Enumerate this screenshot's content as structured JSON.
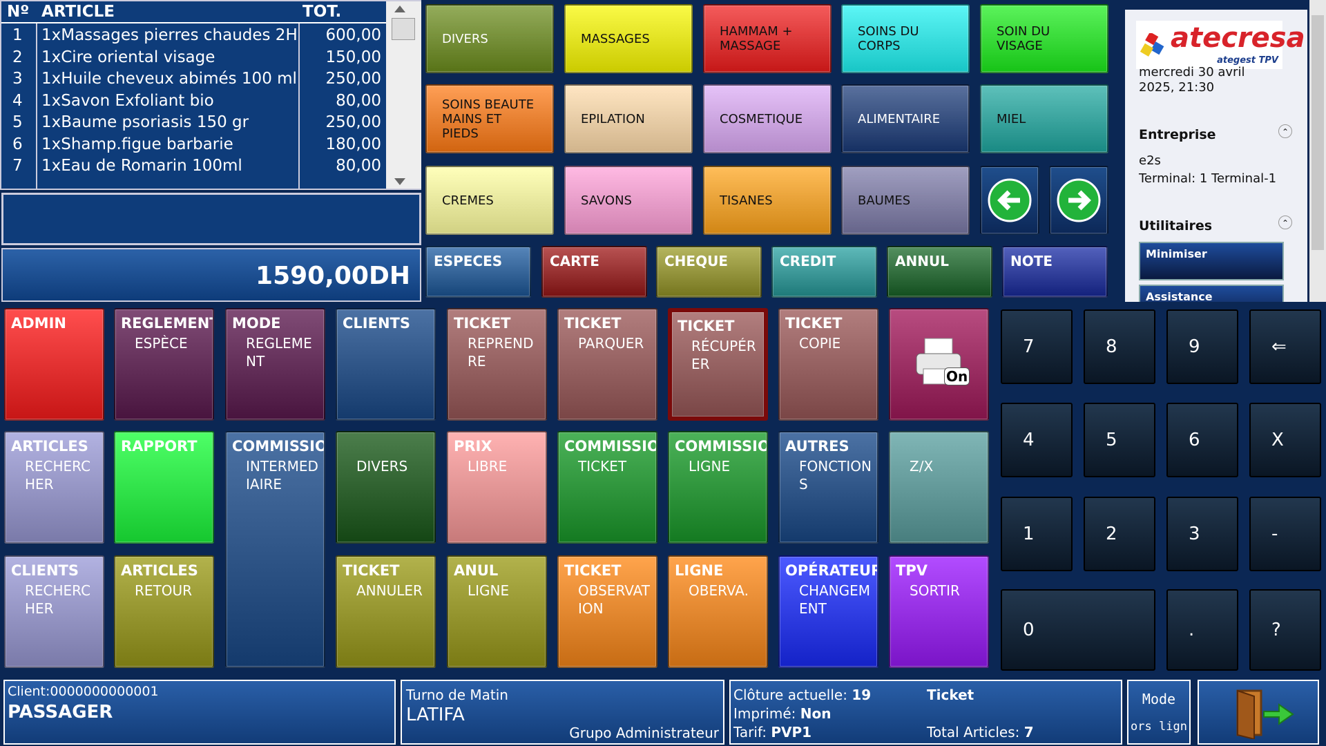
{
  "ticket": {
    "columns": [
      "Nº",
      "ARTICLE",
      "TOT."
    ],
    "rows": [
      [
        "1",
        "1xMassages pierres chaudes 2H",
        "600,00"
      ],
      [
        "2",
        "1xCire oriental visage",
        "150,00"
      ],
      [
        "3",
        "1xHuile cheveux abimés 100 ml",
        "250,00"
      ],
      [
        "4",
        "1xSavon Exfoliant bio",
        "80,00"
      ],
      [
        "5",
        "1xBaume psoriasis 150 gr",
        "250,00"
      ],
      [
        "6",
        "1xShamp.figue barbarie",
        "180,00"
      ],
      [
        "7",
        "1xEau de Romarin 100ml",
        "80,00"
      ]
    ],
    "total": "1590,00DH"
  },
  "families": [
    "DIVERS",
    "MASSAGES",
    "HAMMAM + MASSAGE",
    "SOINS DU CORPS",
    "SOIN DU VISAGE",
    "SOINS BEAUTE MAINS ET PIEDS",
    "EPILATION",
    "COSMETIQUE",
    "ALIMENTAIRE",
    "MIEL",
    "CREMES",
    "SAVONS",
    "TISANES",
    "BAUMES"
  ],
  "payments": [
    "ESPECES",
    "CARTE",
    "CHEQUE",
    "CREDIT",
    "ANNUL",
    "NOTE"
  ],
  "functions": [
    {
      "title": "ADMIN"
    },
    {
      "title": "REGLEMENT",
      "sub": "ESPÈCE"
    },
    {
      "title": "MODE",
      "sub": "REGLEMENT"
    },
    {
      "title": "CLIENTS"
    },
    {
      "title": "TICKET",
      "sub": "REPRENDRE"
    },
    {
      "title": "TICKET",
      "sub": "PARQUER"
    },
    {
      "title": "TICKET",
      "sub": "RÉCUPÉRER"
    },
    {
      "title": "TICKET",
      "sub": "COPIE"
    },
    {
      "icon_label": "On"
    },
    {
      "title": "ARTICLES",
      "sub": "RECHERCHER"
    },
    {
      "title": "RAPPORT"
    },
    {
      "title": "COMMISSIO",
      "sub": "INTERMEDIAIRE"
    },
    {
      "sub": "DIVERS"
    },
    {
      "title": "PRIX",
      "sub": "LIBRE"
    },
    {
      "title": "COMMISSIO",
      "sub": "TICKET"
    },
    {
      "title": "COMMISSIO",
      "sub": "LIGNE"
    },
    {
      "title": "AUTRES",
      "sub": "FONCTIONS"
    },
    {
      "sub": "Z/X"
    },
    {
      "title": "CLIENTS",
      "sub": "RECHERCHER"
    },
    {
      "title": "ARTICLES",
      "sub": "RETOUR"
    },
    {
      "title": "TICKET",
      "sub": "ANNULER"
    },
    {
      "title": "ANUL",
      "sub": "LIGNE"
    },
    {
      "title": "TICKET",
      "sub": "OBSERVATION"
    },
    {
      "title": "LIGNE",
      "sub": "OBERVA."
    },
    {
      "title": "OPÉRATEUR",
      "sub": "CHANGEMENT"
    },
    {
      "title": "TPV",
      "sub": "SORTIR"
    }
  ],
  "keypad": [
    "7",
    "8",
    "9",
    "⇐",
    "4",
    "5",
    "6",
    "X",
    "1",
    "2",
    "3",
    "-",
    "0",
    ".",
    "?"
  ],
  "sidebar": {
    "logo": "atecresa",
    "logo_sub": "ategest TPV",
    "date": "mercredi 30 avril 2025, 21:30",
    "company_heading": "Entreprise",
    "company": "e2s",
    "terminal": "Terminal: 1 Terminal-1",
    "utilities_heading": "Utilitaires",
    "buttons": [
      "Minimiser",
      "Assistance Technique"
    ]
  },
  "footer": {
    "client": "Client:0000000000001",
    "client_name": "PASSAGER",
    "shift": "Turno de Matin",
    "operator": "LATIFA",
    "group": "Grupo Administrateur",
    "closing_label": "Clôture actuelle:",
    "closing": "19",
    "printed_label": "Imprimé:",
    "printed": "Non",
    "tariff_label": "Tarif:",
    "tariff": "PVP1",
    "doc_type": "Ticket",
    "articles_label": "Total Articles:",
    "articles": "7",
    "mode": "Mode",
    "mode_value": "ors lign"
  }
}
